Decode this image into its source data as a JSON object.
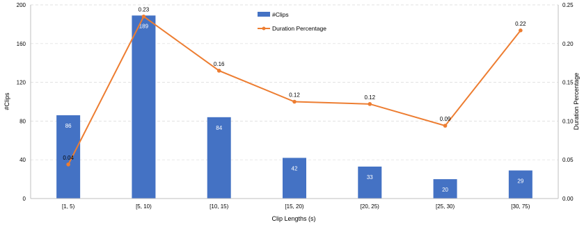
{
  "chart_data": {
    "type": "bar",
    "categories": [
      "[1, 5)",
      "[5, 10)",
      "[10, 15)",
      "[15, 20)",
      "[20, 25)",
      "[25, 30)",
      "[30, 75)"
    ],
    "series": [
      {
        "name": "#Clips",
        "type": "bar",
        "axis": "left",
        "values": [
          86,
          189,
          84,
          42,
          33,
          20,
          29
        ]
      },
      {
        "name": "Duration Percentage",
        "type": "line",
        "axis": "right",
        "values": [
          0.04,
          0.23,
          0.16,
          0.12,
          0.12,
          0.09,
          0.22
        ]
      }
    ],
    "line_plot_values": [
      0.044,
      0.235,
      0.165,
      0.125,
      0.122,
      0.094,
      0.217
    ],
    "xlabel": "Clip Lengths (s)",
    "ylabel": "#Clips",
    "y2label": "Duration Percentage",
    "ylim": [
      0,
      200
    ],
    "y2lim": [
      0,
      0.25
    ],
    "yticks": [
      "0",
      "40",
      "80",
      "120",
      "160",
      "200"
    ],
    "y2ticks": [
      "0.00",
      "0.05",
      "0.10",
      "0.15",
      "0.20",
      "0.25"
    ],
    "grid": true,
    "legend": "top-center",
    "colors": {
      "bar": "#4472C4",
      "line": "#ED7D31",
      "grid": "#D9D9D9",
      "axis": "#BFBFBF",
      "text": "#000000",
      "bar_label": "#ffffff"
    }
  }
}
